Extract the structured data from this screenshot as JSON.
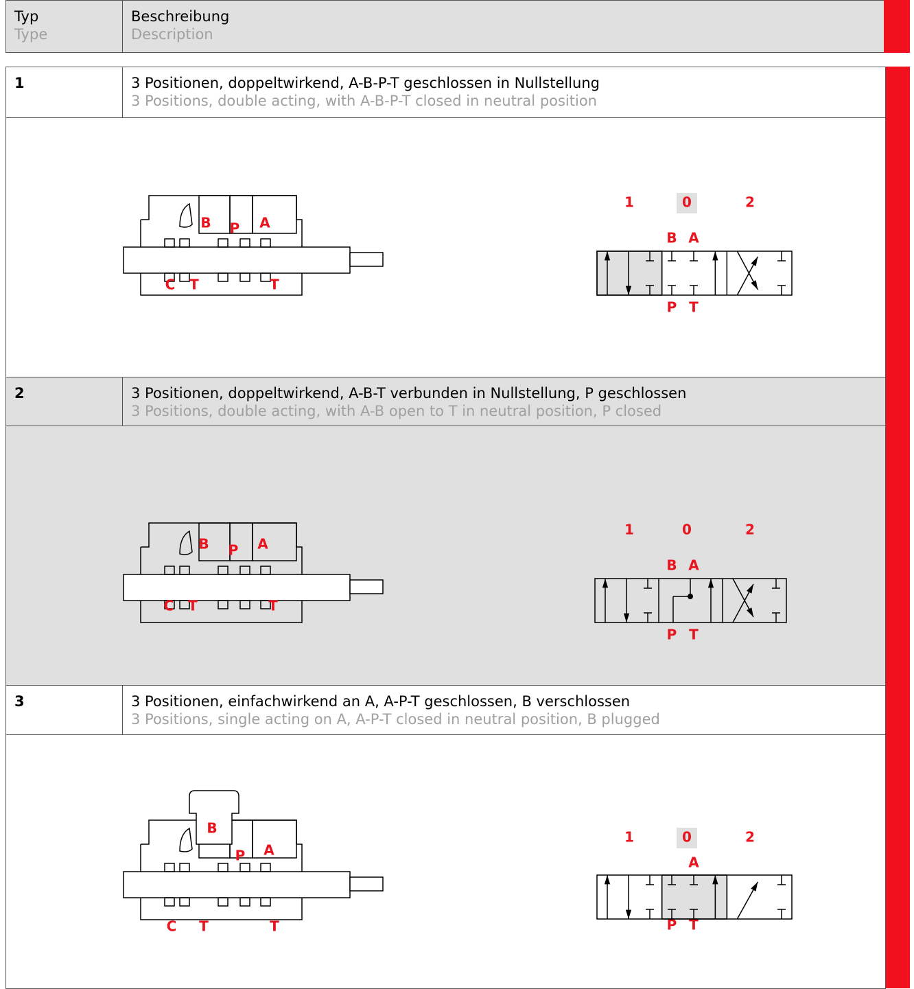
{
  "header": {
    "type": "Typ",
    "type_en": "Type",
    "description": "Beschreibung",
    "description_en": "Description"
  },
  "rows": [
    {
      "number": "1",
      "title": "3 Positionen, doppeltwirkend, A-B-P-T geschlossen in Nullstellung",
      "title_en": "3 Positions, double acting, with A-B-P-T closed in neutral position",
      "section_labels": [
        "B",
        "P",
        "A",
        "C",
        "T",
        "T"
      ],
      "positions": [
        "1",
        "0",
        "2"
      ],
      "ports_top": [
        "B",
        "A"
      ],
      "ports_bottom": [
        "P",
        "T"
      ]
    },
    {
      "number": "2",
      "title": "3 Positionen, doppeltwirkend, A-B-T verbunden in Nullstellung, P geschlossen",
      "title_en": "3 Positions, double acting, with A-B open to T in neutral position, P closed",
      "section_labels": [
        "B",
        "P",
        "A",
        "C",
        "T",
        "T"
      ],
      "positions": [
        "1",
        "0",
        "2"
      ],
      "ports_top": [
        "B",
        "A"
      ],
      "ports_bottom": [
        "P",
        "T"
      ]
    },
    {
      "number": "3",
      "title": "3 Positionen, einfachwirkend an A, A-P-T geschlossen, B verschlossen",
      "title_en": "3 Positions, single acting on A, A-P-T closed in neutral position, B plugged",
      "section_labels": [
        "B",
        "P",
        "A",
        "C",
        "T",
        "T"
      ],
      "positions": [
        "1",
        "0",
        "2"
      ],
      "ports_top": [
        "A"
      ],
      "ports_bottom": [
        "P",
        "T"
      ]
    }
  ]
}
